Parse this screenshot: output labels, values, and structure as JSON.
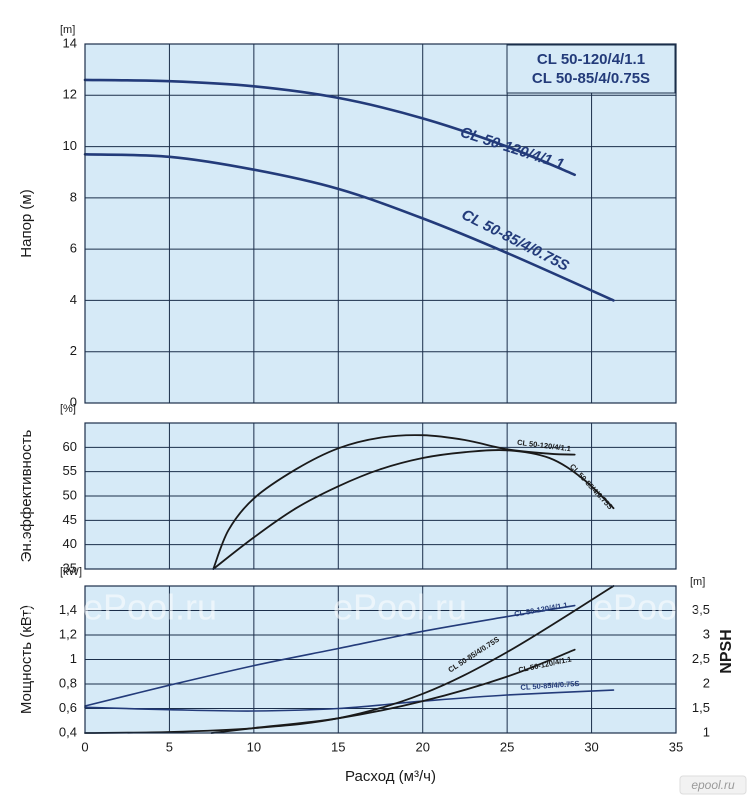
{
  "chart_data": [
    {
      "type": "line",
      "panel": "head",
      "ylabel": "Напор (м)",
      "unit": "[m]",
      "xlim": [
        0,
        35
      ],
      "ylim": [
        0,
        14
      ],
      "xticks": [
        0,
        5,
        10,
        15,
        20,
        25,
        30,
        35
      ],
      "yticks": [
        0,
        2,
        4,
        6,
        8,
        10,
        12,
        14
      ],
      "grid": true,
      "legend_box": [
        "CL 50-120/4/1.1",
        "CL 50-85/4/0.75S"
      ],
      "series": [
        {
          "name": "CL 50-120/4/1.1",
          "x": [
            0,
            5,
            10,
            15,
            20,
            25,
            29
          ],
          "y": [
            12.6,
            12.55,
            12.35,
            11.9,
            11.1,
            10.0,
            8.9
          ]
        },
        {
          "name": "CL 50-85/4/0.75S",
          "x": [
            0,
            5,
            10,
            15,
            20,
            25,
            31.3
          ],
          "y": [
            9.7,
            9.6,
            9.1,
            8.35,
            7.2,
            5.85,
            4.0
          ]
        }
      ]
    },
    {
      "type": "line",
      "panel": "efficiency",
      "ylabel": "Эн.эффективность",
      "unit": "[%]",
      "xlim": [
        0,
        35
      ],
      "ylim": [
        35,
        65
      ],
      "yticks": [
        35,
        40,
        45,
        50,
        55,
        60
      ],
      "grid": true,
      "series": [
        {
          "name": "CL 50-120/4/1.1",
          "x": [
            7.6,
            8.5,
            10,
            12.5,
            15,
            17.5,
            20,
            22.5,
            25,
            27.5,
            29
          ],
          "y": [
            35,
            43,
            49.5,
            55.5,
            59.8,
            62,
            62.5,
            61.5,
            59.6,
            58.7,
            58.5
          ]
        },
        {
          "name": "CL 50-85/4/0.75S",
          "x": [
            7.6,
            10,
            12.5,
            15,
            17.5,
            20,
            22.5,
            25,
            27.5,
            29.5,
            31.3
          ],
          "y": [
            35,
            41.5,
            47.5,
            52,
            55.5,
            57.8,
            59,
            59.4,
            57.8,
            53.5,
            47.5
          ]
        }
      ]
    },
    {
      "type": "line",
      "panel": "power_npsh",
      "ylabel": "Мощность (кВт)",
      "unit": "[kW]",
      "y2label": "NPSH",
      "y2unit": "[m]",
      "xlabel": "Расход (м³/ч)",
      "xlim": [
        0,
        35
      ],
      "ylim": [
        0.4,
        1.6
      ],
      "y2lim": [
        1,
        4
      ],
      "yticks": [
        "0,4",
        "0,6",
        "0,8",
        "1",
        "1,2",
        "1,4"
      ],
      "y2ticks": [
        "1",
        "1,5",
        "2",
        "2,5",
        "3",
        "3,5"
      ],
      "grid": true,
      "series": [
        {
          "name": "CL 50-120/4/1.1",
          "measure": "power",
          "axis": "left",
          "x": [
            0,
            5,
            10,
            15,
            20,
            25,
            29
          ],
          "y": [
            0.62,
            0.79,
            0.95,
            1.09,
            1.23,
            1.35,
            1.44
          ]
        },
        {
          "name": "CL 50-85/4/0.75S",
          "measure": "power",
          "axis": "left",
          "x": [
            0,
            5,
            10,
            15,
            20,
            25,
            31.3
          ],
          "y": [
            0.61,
            0.59,
            0.58,
            0.6,
            0.66,
            0.71,
            0.75
          ]
        },
        {
          "name": "CL 50-85/4/0.75S",
          "measure": "npsh",
          "axis": "right",
          "x": [
            0,
            5,
            10,
            15,
            20,
            25,
            31.3
          ],
          "y": [
            1.0,
            1.02,
            1.1,
            1.3,
            1.8,
            2.65,
            4.0
          ]
        },
        {
          "name": "CL 50-120/4/1.1",
          "measure": "npsh",
          "axis": "right",
          "x": [
            7.5,
            10,
            15,
            20,
            25,
            29
          ],
          "y": [
            1.0,
            1.1,
            1.3,
            1.65,
            2.15,
            2.7
          ]
        }
      ]
    }
  ],
  "colors": {
    "plot_bg": "#d6eaf7",
    "grid": "#1b2e4a",
    "navy": "#233b7a",
    "black": "#1a1a1a",
    "text": "#1a1a1a"
  },
  "watermark": {
    "text": "ePool.ru",
    "corner_logo": "epool.ru"
  }
}
